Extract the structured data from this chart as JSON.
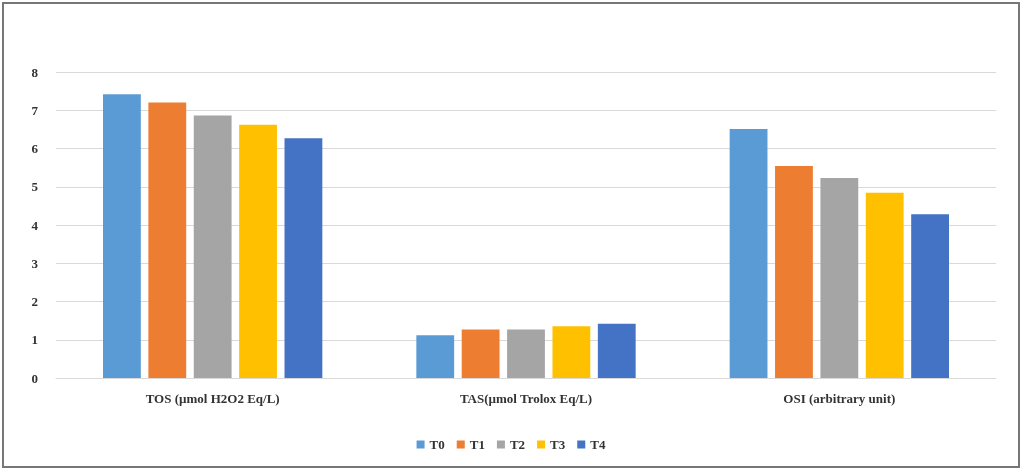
{
  "chart_data": {
    "type": "bar",
    "categories": [
      "TOS (µmol H2O2 Eq/L)",
      "TAS(µmol Trolox Eq/L)",
      "OSI (arbitrary unit)"
    ],
    "series": [
      {
        "name": "T0",
        "color": "#5b9bd5",
        "values": [
          7.42,
          1.12,
          6.51
        ]
      },
      {
        "name": "T1",
        "color": "#ed7d31",
        "values": [
          7.2,
          1.27,
          5.54
        ]
      },
      {
        "name": "T2",
        "color": "#a5a5a5",
        "values": [
          6.86,
          1.27,
          5.23
        ]
      },
      {
        "name": "T3",
        "color": "#ffc000",
        "values": [
          6.62,
          1.35,
          4.84
        ]
      },
      {
        "name": "T4",
        "color": "#4472c4",
        "values": [
          6.27,
          1.42,
          4.28
        ]
      }
    ],
    "ylim": [
      0,
      8
    ],
    "yticks": [
      0,
      1,
      2,
      3,
      4,
      5,
      6,
      7,
      8
    ],
    "grid": "y",
    "legend": "bottom"
  }
}
